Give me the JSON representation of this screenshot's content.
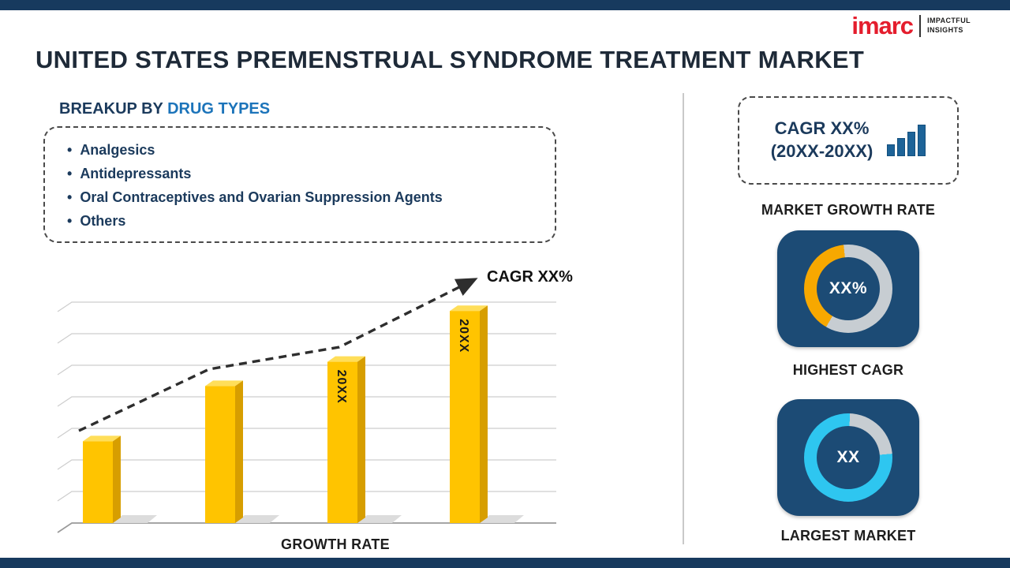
{
  "header": {
    "title": "UNITED STATES PREMENSTRUAL SYNDROME TREATMENT MARKET",
    "logo": {
      "brand": "imarc",
      "tagline1": "IMPACTFUL",
      "tagline2": "INSIGHTS"
    }
  },
  "breakup": {
    "title_prefix": "BREAKUP BY",
    "title_highlight": "DRUG TYPES",
    "items": [
      "Analgesics",
      "Antidepressants",
      "Oral Contraceptives and Ovarian Suppression Agents",
      "Others"
    ]
  },
  "chart_data": {
    "type": "bar",
    "title": "",
    "xlabel": "GROWTH RATE",
    "ylabel": "",
    "categories": [
      "",
      "",
      "20XX",
      "20XX"
    ],
    "values": [
      37,
      62,
      73,
      96
    ],
    "bar_labels": [
      "",
      "",
      "20XX",
      "20XX"
    ],
    "ylim": [
      0,
      100
    ],
    "grid": true,
    "legend": "none",
    "bar_color": "#FFC400",
    "trend": {
      "style": "dashed-arrow",
      "direction": "up",
      "label": "CAGR XX%"
    }
  },
  "right_panel": {
    "growth_box": {
      "line1": "CAGR XX%",
      "line2": "(20XX-20XX)"
    },
    "growth_label": "MARKET GROWTH RATE",
    "highest_cagr": {
      "value": "XX%",
      "label": "HIGHEST CAGR",
      "ring_color": "#F7A800",
      "ring_percent": 40
    },
    "largest_market": {
      "value": "XX",
      "label": "LARGEST MARKET",
      "ring_color": "#2EC6F0",
      "ring_percent": 77
    }
  },
  "colors": {
    "accent_bar_navy": "#173A5E",
    "card_navy": "#1C4B75",
    "heading_navy": "#1B3A5C",
    "accent_blue": "#1C74BA",
    "bar_gold": "#FFC400",
    "logo_red": "#E41D2D",
    "ring_gray": "#C7CDD2"
  }
}
